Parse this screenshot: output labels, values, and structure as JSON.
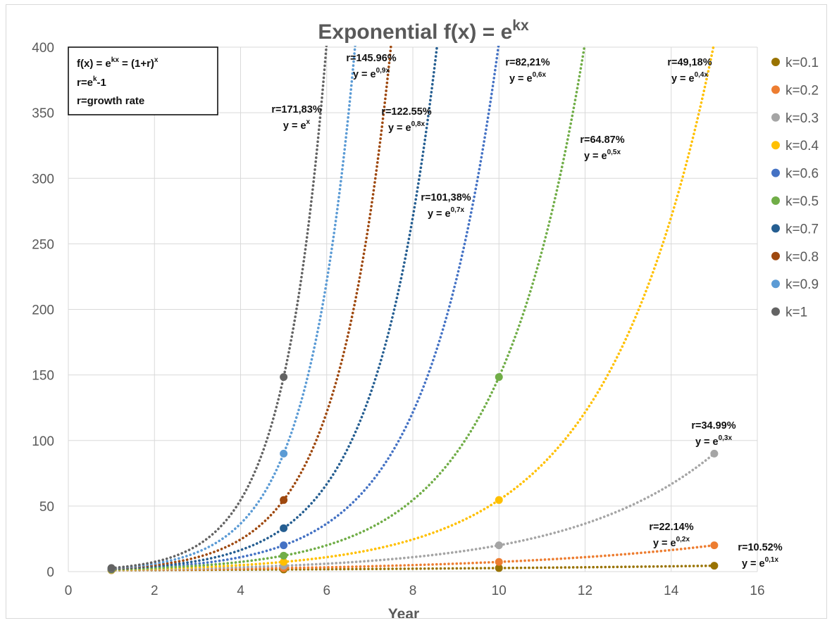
{
  "chart_data": {
    "type": "line",
    "title": "Exponential  f(x) = e^kx",
    "title_parts": [
      "Exponential  f(x) = e",
      "kx"
    ],
    "xlabel": "Year",
    "ylabel": "",
    "xlim": [
      0,
      16
    ],
    "ylim": [
      0,
      400
    ],
    "xticks": [
      0,
      2,
      4,
      6,
      8,
      10,
      12,
      14,
      16
    ],
    "yticks": [
      0,
      50,
      100,
      150,
      200,
      250,
      300,
      350,
      400
    ],
    "grid": true,
    "line_style": "dotted",
    "legend_position": "right",
    "series": [
      {
        "name": "k=0.1",
        "k": 0.1,
        "color": "#997300",
        "markers": [
          {
            "x": 1,
            "y": 1.11
          },
          {
            "x": 5,
            "y": 1.65
          },
          {
            "x": 10,
            "y": 2.72
          },
          {
            "x": 15,
            "y": 4.48
          }
        ]
      },
      {
        "name": "k=0.2",
        "k": 0.2,
        "color": "#ED7D31",
        "markers": [
          {
            "x": 1,
            "y": 1.22
          },
          {
            "x": 5,
            "y": 2.72
          },
          {
            "x": 10,
            "y": 7.39
          },
          {
            "x": 15,
            "y": 20.09
          }
        ]
      },
      {
        "name": "k=0.3",
        "k": 0.3,
        "color": "#A5A5A5",
        "markers": [
          {
            "x": 1,
            "y": 1.35
          },
          {
            "x": 5,
            "y": 4.48
          },
          {
            "x": 10,
            "y": 20.09
          },
          {
            "x": 15,
            "y": 90.02
          }
        ]
      },
      {
        "name": "k=0.4",
        "k": 0.4,
        "color": "#FFC000",
        "markers": [
          {
            "x": 1,
            "y": 1.49
          },
          {
            "x": 5,
            "y": 7.39
          },
          {
            "x": 10,
            "y": 54.6
          }
        ]
      },
      {
        "name": "k=0.6",
        "k": 0.6,
        "color": "#4472C4",
        "markers": [
          {
            "x": 1,
            "y": 1.82
          },
          {
            "x": 5,
            "y": 20.09
          }
        ]
      },
      {
        "name": "k=0.5",
        "k": 0.5,
        "color": "#70AD47",
        "markers": [
          {
            "x": 1,
            "y": 1.65
          },
          {
            "x": 5,
            "y": 12.18
          },
          {
            "x": 10,
            "y": 148.41
          }
        ]
      },
      {
        "name": "k=0.7",
        "k": 0.7,
        "color": "#255E91",
        "markers": [
          {
            "x": 1,
            "y": 2.01
          },
          {
            "x": 5,
            "y": 33.12
          }
        ]
      },
      {
        "name": "k=0.8",
        "k": 0.8,
        "color": "#9E480E",
        "markers": [
          {
            "x": 1,
            "y": 2.23
          },
          {
            "x": 5,
            "y": 54.6
          }
        ]
      },
      {
        "name": "k=0.9",
        "k": 0.9,
        "color": "#5B9BD5",
        "markers": [
          {
            "x": 1,
            "y": 2.46
          },
          {
            "x": 5,
            "y": 90.02
          }
        ]
      },
      {
        "name": "k=1",
        "k": 1.0,
        "color": "#636363",
        "markers": [
          {
            "x": 1,
            "y": 2.72
          },
          {
            "x": 5,
            "y": 148.41
          }
        ]
      }
    ],
    "annotations": [
      {
        "rate": "r=171,83%",
        "eq_base": "y = e",
        "eq_exp": "x"
      },
      {
        "rate": "r=145.96%",
        "eq_base": "y = e",
        "eq_exp": "0,9x"
      },
      {
        "rate": "r=122.55%",
        "eq_base": "y = e",
        "eq_exp": "0,8x"
      },
      {
        "rate": "r=101,38%",
        "eq_base": "y = e",
        "eq_exp": "0,7x"
      },
      {
        "rate": "r=82,21%",
        "eq_base": "y = e",
        "eq_exp": "0,6x"
      },
      {
        "rate": "r=64.87%",
        "eq_base": "y = e",
        "eq_exp": "0,5x"
      },
      {
        "rate": "r=49,18%",
        "eq_base": "y = e",
        "eq_exp": "0,4x"
      },
      {
        "rate": "r=34.99%",
        "eq_base": "y = e",
        "eq_exp": "0,3x"
      },
      {
        "rate": "r=22.14%",
        "eq_base": "y = e",
        "eq_exp": "0,2x"
      },
      {
        "rate": "r=10.52%",
        "eq_base": "y = e",
        "eq_exp": "0,1x"
      }
    ],
    "formula_box": {
      "line1_parts": [
        "f(x) = e",
        "kx",
        " = (1+r)",
        "x"
      ],
      "line2_parts": [
        "r=e",
        "k",
        "-1"
      ],
      "line3": "r=growth rate"
    }
  }
}
